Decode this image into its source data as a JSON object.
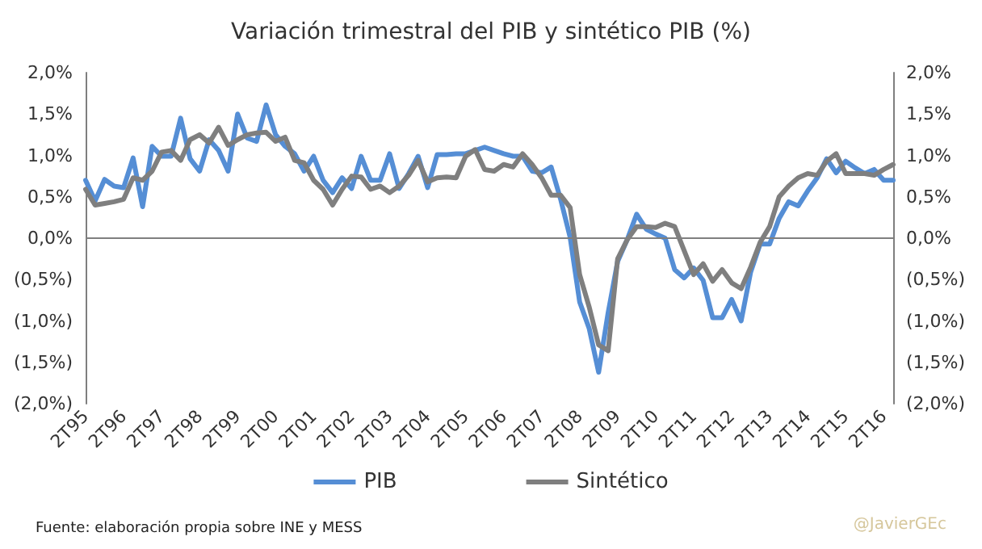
{
  "chart_data": {
    "type": "line",
    "title": "Variación trimestral del PIB y sintético PIB (%)",
    "categories": [
      "2T95",
      null,
      null,
      null,
      "2T96",
      null,
      null,
      null,
      "2T97",
      null,
      null,
      null,
      "2T98",
      null,
      null,
      null,
      "2T99",
      null,
      null,
      null,
      "2T00",
      null,
      null,
      null,
      "2T01",
      null,
      null,
      null,
      "2T02",
      null,
      null,
      null,
      "2T03",
      null,
      null,
      null,
      "2T04",
      null,
      null,
      null,
      "2T05",
      null,
      null,
      null,
      "2T06",
      null,
      null,
      null,
      "2T07",
      null,
      null,
      null,
      "2T08",
      null,
      null,
      null,
      "2T09",
      null,
      null,
      null,
      "2T10",
      null,
      null,
      null,
      "2T11",
      null,
      null,
      null,
      "2T12",
      null,
      null,
      null,
      "2T13",
      null,
      null,
      null,
      "2T14",
      null,
      null,
      null,
      "2T15",
      null,
      null,
      null,
      "2T16",
      null
    ],
    "series": [
      {
        "name": "PIB",
        "color": "#558ed5",
        "values": [
          0.7,
          0.45,
          0.71,
          0.63,
          0.61,
          0.97,
          0.38,
          1.11,
          0.99,
          0.99,
          1.45,
          0.96,
          0.81,
          1.19,
          1.06,
          0.81,
          1.5,
          1.21,
          1.17,
          1.61,
          1.25,
          1.11,
          1.02,
          0.81,
          0.99,
          0.7,
          0.55,
          0.73,
          0.6,
          0.99,
          0.7,
          0.7,
          1.02,
          0.6,
          0.78,
          0.99,
          0.61,
          1.01,
          1.01,
          1.02,
          1.02,
          1.06,
          1.1,
          1.06,
          1.02,
          0.99,
          0.99,
          0.81,
          0.79,
          0.86,
          0.47,
          0.01,
          -0.77,
          -1.09,
          -1.62,
          -0.9,
          -0.28,
          -0.02,
          0.29,
          0.11,
          0.05,
          0.0,
          -0.38,
          -0.48,
          -0.36,
          -0.51,
          -0.96,
          -0.96,
          -0.74,
          -1.0,
          -0.41,
          -0.07,
          -0.07,
          0.24,
          0.44,
          0.39,
          0.57,
          0.73,
          0.96,
          0.79,
          0.93,
          0.85,
          0.78,
          0.83,
          0.7,
          0.7
        ]
      },
      {
        "name": "Sintético",
        "color": "#7f7f7f",
        "values": [
          0.59,
          0.4,
          0.42,
          0.44,
          0.47,
          0.73,
          0.7,
          0.81,
          1.04,
          1.06,
          0.94,
          1.19,
          1.25,
          1.15,
          1.34,
          1.12,
          1.19,
          1.25,
          1.27,
          1.28,
          1.17,
          1.22,
          0.94,
          0.91,
          0.7,
          0.59,
          0.4,
          0.59,
          0.75,
          0.74,
          0.59,
          0.63,
          0.55,
          0.63,
          0.76,
          0.94,
          0.68,
          0.73,
          0.74,
          0.73,
          0.99,
          1.07,
          0.83,
          0.81,
          0.89,
          0.86,
          1.02,
          0.89,
          0.73,
          0.52,
          0.52,
          0.37,
          -0.44,
          -0.83,
          -1.29,
          -1.36,
          -0.25,
          -0.02,
          0.14,
          0.14,
          0.13,
          0.18,
          0.14,
          -0.15,
          -0.44,
          -0.31,
          -0.52,
          -0.38,
          -0.54,
          -0.61,
          -0.35,
          -0.05,
          0.14,
          0.5,
          0.63,
          0.73,
          0.78,
          0.76,
          0.93,
          1.02,
          0.78,
          0.78,
          0.78,
          0.76,
          0.83,
          0.89
        ]
      }
    ],
    "ylim": [
      -2,
      2
    ],
    "yticks": [
      {
        "value": -2,
        "label": "(2,0%)"
      },
      {
        "value": -1.5,
        "label": "(1,5%)"
      },
      {
        "value": -1,
        "label": "(1,0%)"
      },
      {
        "value": -0.5,
        "label": "(0,5%)"
      },
      {
        "value": 0,
        "label": "0,0%"
      },
      {
        "value": 0.5,
        "label": "0,5%"
      },
      {
        "value": 1,
        "label": "1,0%"
      },
      {
        "value": 1.5,
        "label": "1,5%"
      },
      {
        "value": 2,
        "label": "2,0%"
      }
    ],
    "y2lim": [
      -2,
      2
    ],
    "y2ticks": [
      {
        "value": -2,
        "label": "(2,0%)"
      },
      {
        "value": -1.5,
        "label": "(1,5%)"
      },
      {
        "value": -1,
        "label": "(1,0%)"
      },
      {
        "value": -0.5,
        "label": "(0,5%)"
      },
      {
        "value": 0,
        "label": "0,0%"
      },
      {
        "value": 0.5,
        "label": "0,5%"
      },
      {
        "value": 1,
        "label": "1,0%"
      },
      {
        "value": 1.5,
        "label": "1,5%"
      },
      {
        "value": 2,
        "label": "2,0%"
      }
    ],
    "ref_lines": [
      {
        "axis": "y",
        "value": 0,
        "color": "#7f7f7f"
      }
    ],
    "grid": false,
    "legend": "bottom",
    "marker": "none",
    "line_style": "solid",
    "annotations": [
      "Fuente: elaboración propia sobre INE y MESS",
      "@JavierGEc"
    ]
  }
}
